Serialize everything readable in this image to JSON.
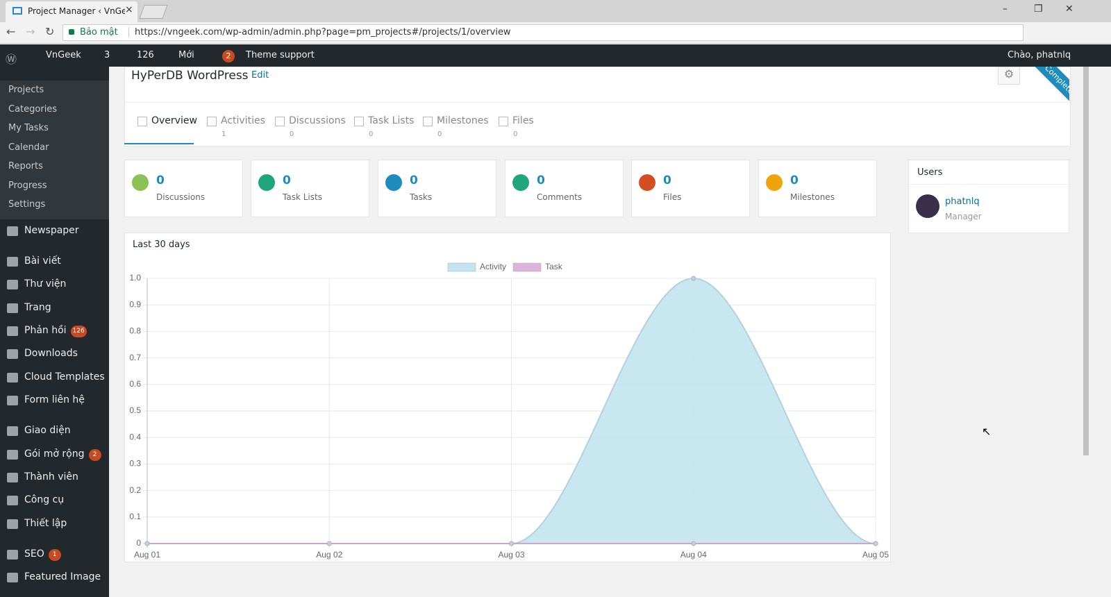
{
  "browser": {
    "tab_title": "Project Manager ‹ VnGee",
    "secure": "Bảo mật",
    "url": "https://vngeek.com/wp-admin/admin.php?page=pm_projects#/projects/1/overview"
  },
  "admin_bar": {
    "site": "VnGeek",
    "updates": "3",
    "comments": "126",
    "new": "Mới",
    "yoast": "2",
    "theme": "Theme support",
    "greeting": "Chào, phatnlq"
  },
  "sidebar": {
    "current": "Project Manager",
    "submenu": [
      "Projects",
      "Categories",
      "My Tasks",
      "Calendar",
      "Reports",
      "Progress",
      "Settings"
    ],
    "menu": [
      {
        "label": "Newspaper"
      },
      {
        "label": "Bài viết"
      },
      {
        "label": "Thư viện"
      },
      {
        "label": "Trang"
      },
      {
        "label": "Phản hồi",
        "badge": "126"
      },
      {
        "label": "Downloads"
      },
      {
        "label": "Cloud Templates"
      },
      {
        "label": "Form liên hệ"
      },
      {
        "label": "Giao diện"
      },
      {
        "label": "Gói mở rộng",
        "badge": "2"
      },
      {
        "label": "Thành viên"
      },
      {
        "label": "Công cụ"
      },
      {
        "label": "Thiết lập"
      },
      {
        "label": "SEO",
        "badge": "1"
      },
      {
        "label": "Featured Image"
      }
    ]
  },
  "project": {
    "title": "HyPerDB WordPress",
    "edit": "Edit",
    "ribbon": "Complete",
    "tabs": [
      {
        "label": "Overview"
      },
      {
        "label": "Activities",
        "count": "1"
      },
      {
        "label": "Discussions",
        "count": "0"
      },
      {
        "label": "Task Lists",
        "count": "0"
      },
      {
        "label": "Milestones",
        "count": "0"
      },
      {
        "label": "Files",
        "count": "0"
      }
    ],
    "stats": [
      {
        "value": "0",
        "label": "Discussions",
        "color": "#8dc153"
      },
      {
        "value": "0",
        "label": "Task Lists",
        "color": "#1fa67a"
      },
      {
        "value": "0",
        "label": "Tasks",
        "color": "#1e8cbe"
      },
      {
        "value": "0",
        "label": "Comments",
        "color": "#1fa67a"
      },
      {
        "value": "0",
        "label": "Files",
        "color": "#d54e21"
      },
      {
        "value": "0",
        "label": "Milestones",
        "color": "#f0a30a"
      }
    ]
  },
  "users": {
    "title": "Users",
    "name": "phatnlq",
    "role": "Manager"
  },
  "chart_data": {
    "type": "area",
    "title": "Last 30 days",
    "categories": [
      "Aug 01",
      "Aug 02",
      "Aug 03",
      "Aug 04",
      "Aug 05"
    ],
    "series": [
      {
        "name": "Activity",
        "color": "#c3e4ef",
        "values": [
          0,
          0,
          0,
          1,
          0
        ]
      },
      {
        "name": "Task",
        "color": "#dbb4dc",
        "values": [
          0,
          0,
          0,
          0,
          0
        ]
      }
    ],
    "ylim": [
      0,
      1
    ],
    "yticks": [
      0,
      0.1,
      0.2,
      0.3,
      0.4,
      0.5,
      0.6,
      0.7,
      0.8,
      0.9,
      {
        "value": 1,
        "label": "1.0"
      }
    ],
    "grid": true,
    "legend": "top"
  }
}
